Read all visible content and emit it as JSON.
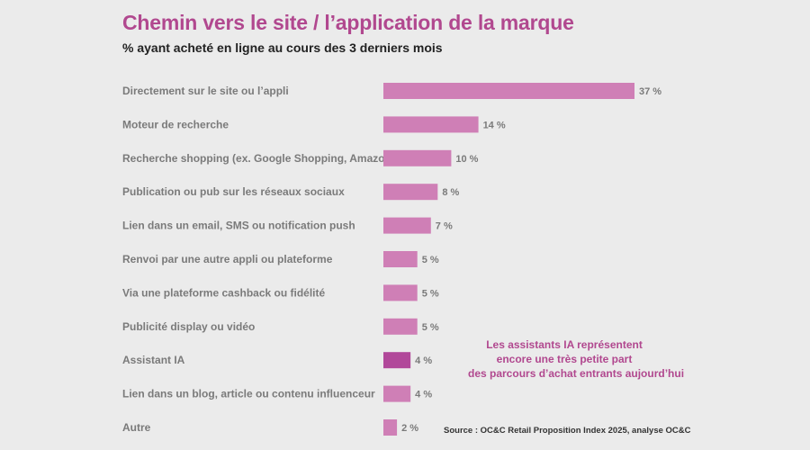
{
  "chart_data": {
    "type": "bar",
    "orientation": "horizontal",
    "title": "Chemin vers le site / l’application de la marque",
    "subtitle": "% ayant acheté en ligne au cours des 3 derniers mois",
    "categories": [
      "Directement sur le site ou l’appli",
      "Moteur de recherche",
      "Recherche shopping (ex. Google Shopping, Amazon)",
      "Publication ou pub sur les réseaux sociaux",
      "Lien dans un email, SMS ou notification push",
      "Renvoi par une autre appli ou plateforme",
      "Via une plateforme cashback ou fidélité",
      "Publicité display ou vidéo",
      "Assistant IA",
      "Lien dans un blog, article ou contenu influenceur",
      "Autre"
    ],
    "values": [
      37,
      14,
      10,
      8,
      7,
      5,
      5,
      5,
      4,
      4,
      2
    ],
    "value_labels": [
      "37 %",
      "14 %",
      "10 %",
      "8 %",
      "7 %",
      "5 %",
      "5 %",
      "5 %",
      "4 %",
      "4 %",
      "2 %"
    ],
    "highlight_index": 8,
    "xlim": [
      0,
      37
    ],
    "annotation": [
      "Les assistants IA représentent",
      "encore une très petite part",
      "des parcours d’achat entrants aujourd’hui"
    ],
    "source": "Source : OC&C Retail Proposition Index 2025, analyse OC&C"
  },
  "colors": {
    "background": "#ebebeb",
    "bar": "#cf7fb6",
    "bar_highlight": "#b1489a",
    "title": "#b1488f",
    "label": "#7a7a7a"
  }
}
